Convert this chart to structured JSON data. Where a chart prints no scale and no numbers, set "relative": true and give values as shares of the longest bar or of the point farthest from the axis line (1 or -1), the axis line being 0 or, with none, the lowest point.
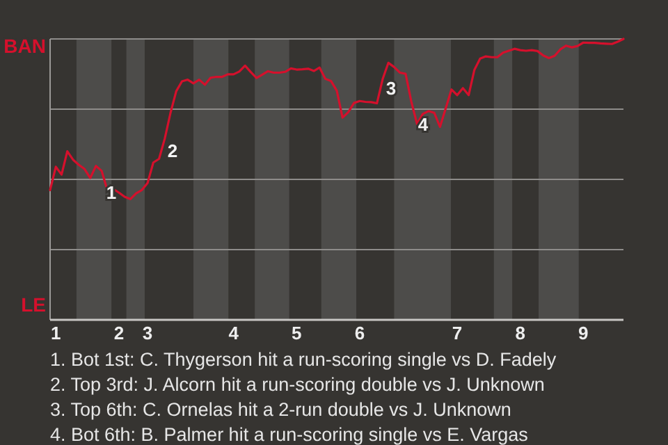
{
  "chart_data": {
    "type": "line",
    "relative": true,
    "categories": [
      null,
      "1",
      null,
      null,
      null,
      null,
      null,
      null,
      null,
      null,
      null,
      null,
      "2",
      null,
      null,
      null,
      null,
      "3",
      null,
      null,
      null,
      null,
      null,
      null,
      null,
      null,
      null,
      null,
      null,
      null,
      null,
      null,
      "4",
      null,
      null,
      null,
      null,
      null,
      null,
      null,
      null,
      null,
      null,
      "5",
      null,
      null,
      null,
      null,
      null,
      null,
      null,
      null,
      null,
      null,
      "6",
      null,
      null,
      null,
      null,
      null,
      null,
      null,
      null,
      null,
      null,
      null,
      null,
      null,
      null,
      null,
      null,
      "7",
      null,
      null,
      null,
      null,
      null,
      null,
      null,
      null,
      null,
      null,
      "8",
      null,
      null,
      null,
      null,
      null,
      null,
      null,
      null,
      null,
      null,
      "9",
      null,
      null,
      null,
      null,
      null,
      null,
      null
    ],
    "grid": "y",
    "marker": "none",
    "line_style": "solid",
    "series": [
      {
        "color": "#d5102c",
        "values": [
          0.462,
          0.545,
          0.517,
          0.6,
          0.57,
          0.552,
          0.537,
          0.505,
          0.548,
          0.53,
          0.46,
          0.466,
          0.453,
          0.438,
          0.43,
          0.45,
          0.462,
          0.487,
          0.56,
          0.573,
          0.645,
          0.737,
          0.814,
          0.849,
          0.855,
          0.842,
          0.855,
          0.837,
          0.862,
          0.865,
          0.865,
          0.874,
          0.874,
          0.884,
          0.905,
          0.882,
          0.861,
          0.873,
          0.885,
          0.88,
          0.88,
          0.883,
          0.895,
          0.891,
          0.892,
          0.894,
          0.886,
          0.898,
          0.858,
          0.85,
          0.816,
          0.72,
          0.739,
          0.772,
          0.779,
          0.776,
          0.775,
          0.771,
          0.857,
          0.915,
          0.9,
          0.88,
          0.876,
          0.777,
          0.697,
          0.733,
          0.743,
          0.737,
          0.687,
          0.753,
          0.82,
          0.8,
          0.825,
          0.8,
          0.89,
          0.93,
          0.938,
          0.935,
          0.935,
          0.951,
          0.958,
          0.965,
          0.96,
          0.958,
          0.96,
          0.957,
          0.941,
          0.932,
          0.94,
          0.963,
          0.976,
          0.97,
          0.975,
          0.987,
          0.986,
          0.986,
          0.984,
          0.983,
          0.982,
          0.99,
          1
        ]
      }
    ],
    "annotations": [
      "BAN",
      "LE",
      "1",
      "2",
      "3",
      "4",
      "1. Bot 1st: C. Thygerson hit a run-scoring single vs D. Fadely",
      "2. Top 3rd: J. Alcorn hit a run-scoring double vs J. Unknown",
      "3. Top 6th: C. Ornelas hit a 2-run double vs J. Unknown",
      "4. Bot 6th: B. Palmer hit a run-scoring single vs E. Vargas"
    ]
  }
}
